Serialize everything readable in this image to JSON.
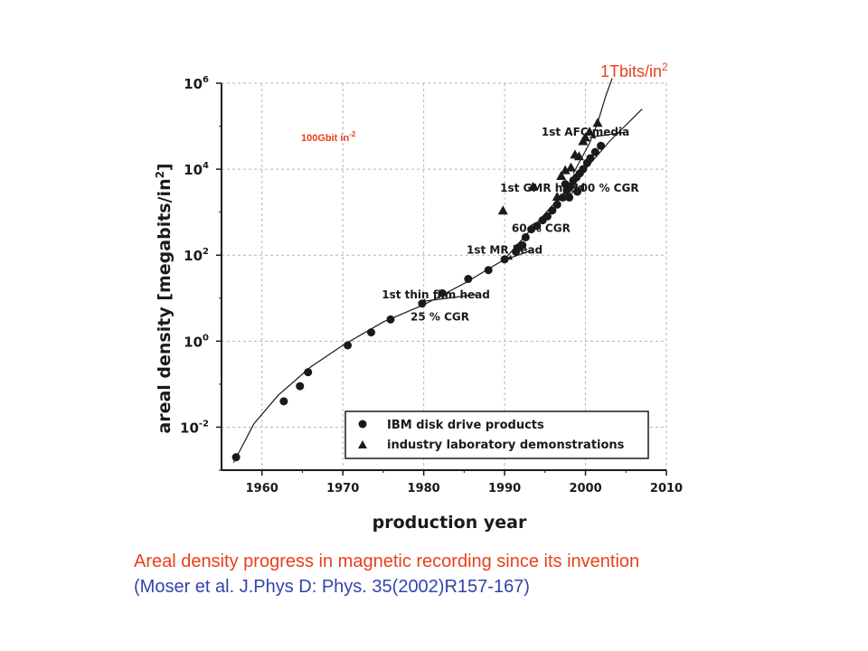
{
  "colors": {
    "accent_red": "#e8401c",
    "caption_blue": "#3344aa",
    "ink": "#1a1a1a",
    "grid": "#aab6d0"
  },
  "annotations": {
    "tbits_base": "1Tbits/in",
    "tbits_sup": "2",
    "gbit_base": "100Gbit in",
    "gbit_sup": "-2"
  },
  "caption": {
    "line1": "Areal density progress in magnetic recording since its invention",
    "line2": "(Moser et al. J.Phys D: Phys. 35(2002)R157-167)"
  },
  "chart_data": {
    "type": "scatter",
    "xlabel": "production year",
    "ylabel_base": "areal density [megabits/in",
    "ylabel_sup": "2",
    "ylabel_end": "]",
    "xlim": [
      1955,
      2010
    ],
    "ylim": [
      0.001,
      1000000
    ],
    "yscale": "log",
    "grid": true,
    "x_ticks": [
      1960,
      1970,
      1980,
      1990,
      2000,
      2010
    ],
    "x_tick_labels": [
      "1960",
      "1970",
      "1980",
      "1990",
      "2000",
      "2010"
    ],
    "y_ticks": [
      0.01,
      1,
      100,
      10000,
      1000000
    ],
    "y_tick_base": "10",
    "y_tick_exponents": [
      "-2",
      "0",
      "2",
      "4",
      "6"
    ],
    "legend": {
      "position": "bottom-right",
      "entries": [
        "IBM disk drive products",
        "industry laboratory demonstrations"
      ]
    },
    "series": [
      {
        "name": "IBM disk drive products",
        "marker": "circle",
        "points": [
          [
            1956.8,
            0.002
          ],
          [
            1962.7,
            0.04
          ],
          [
            1964.7,
            0.09
          ],
          [
            1965.7,
            0.19
          ],
          [
            1970.6,
            0.8
          ],
          [
            1973.5,
            1.6
          ],
          [
            1975.9,
            3.2
          ],
          [
            1979.8,
            7.5
          ],
          [
            1982.3,
            13
          ],
          [
            1985.5,
            28
          ],
          [
            1988.0,
            45
          ],
          [
            1990.0,
            80
          ],
          [
            1991.4,
            120
          ],
          [
            1991.7,
            150
          ],
          [
            1992.2,
            170
          ],
          [
            1992.6,
            260
          ],
          [
            1993.3,
            400
          ],
          [
            1994.0,
            480
          ],
          [
            1994.7,
            650
          ],
          [
            1995.3,
            800
          ],
          [
            1995.9,
            1100
          ],
          [
            1996.5,
            1500
          ],
          [
            1997.2,
            2200
          ],
          [
            1997.7,
            3200
          ],
          [
            1998.1,
            4000
          ],
          [
            1998.5,
            5500
          ],
          [
            1998.9,
            6500
          ],
          [
            1999.3,
            8000
          ],
          [
            1999.7,
            10000
          ],
          [
            2000.2,
            14000
          ],
          [
            2000.6,
            18000
          ],
          [
            2001.2,
            25000
          ],
          [
            2001.9,
            35000
          ],
          [
            1998.0,
            2200
          ],
          [
            1999.0,
            3000
          ],
          [
            1997.5,
            4500
          ]
        ]
      },
      {
        "name": "industry laboratory demonstrations",
        "marker": "triangle",
        "points": [
          [
            1989.8,
            1100
          ],
          [
            1993.5,
            3900
          ],
          [
            1996.5,
            2300
          ],
          [
            1997.0,
            7000
          ],
          [
            1997.5,
            9500
          ],
          [
            1998.2,
            11000
          ],
          [
            1998.7,
            22000
          ],
          [
            1999.2,
            20000
          ],
          [
            1999.7,
            45000
          ],
          [
            2000.0,
            55000
          ],
          [
            2000.5,
            75000
          ],
          [
            2001.5,
            120000
          ]
        ]
      }
    ],
    "trend_curve": [
      [
        1956.5,
        0.0015
      ],
      [
        1959,
        0.012
      ],
      [
        1962,
        0.055
      ],
      [
        1966,
        0.25
      ],
      [
        1970,
        0.8
      ],
      [
        1975,
        2.8
      ],
      [
        1980,
        7
      ],
      [
        1985,
        22
      ],
      [
        1990,
        80
      ],
      [
        1993,
        350
      ],
      [
        1996,
        1500
      ],
      [
        2000,
        10000
      ],
      [
        2003,
        45000
      ],
      [
        2007,
        250000
      ]
    ],
    "fast_curve": [
      [
        1998.5,
        8000
      ],
      [
        1999.5,
        18000
      ],
      [
        2000.5,
        40000
      ],
      [
        2001.5,
        120000
      ],
      [
        2002.5,
        500000
      ],
      [
        2003.3,
        1300000
      ]
    ],
    "annotations": [
      {
        "text": "1st thin film head",
        "x": 1981.5,
        "y": 10
      },
      {
        "text": "25 % CGR",
        "x": 1982,
        "y": 3
      },
      {
        "text": "1st MR head",
        "x": 1990,
        "y": 110
      },
      {
        "text": "60 % CGR",
        "x": 1994.5,
        "y": 350
      },
      {
        "text": "1st GMR head",
        "x": 1994.7,
        "y": 3000
      },
      {
        "text": "100 % CGR",
        "x": 2002.5,
        "y": 3000
      },
      {
        "text": "1st AFC media",
        "x": 2000,
        "y": 60000
      }
    ]
  }
}
